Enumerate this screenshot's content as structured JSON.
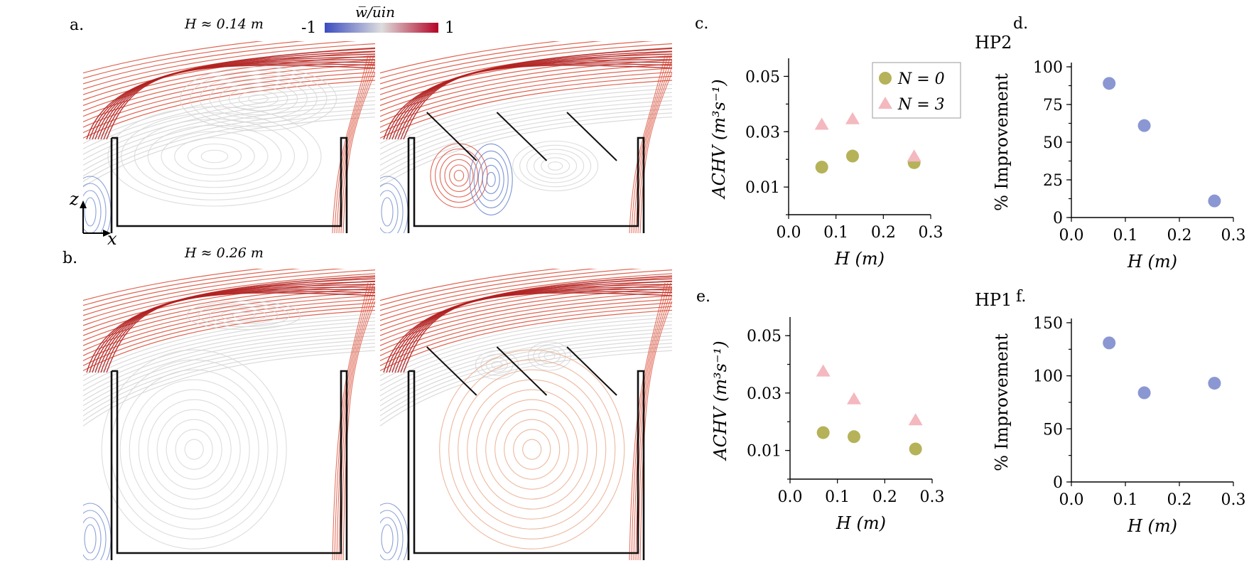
{
  "panels": {
    "a": {
      "label": "a.",
      "H_label": "H ≈ 0.14 m"
    },
    "b": {
      "label": "b.",
      "H_label": "H ≈ 0.26 m"
    }
  },
  "colorbar": {
    "label": "w̅/u̅in",
    "min_label": "-1",
    "max_label": "1",
    "colors": [
      "#3b4cc0",
      "#dddddd",
      "#b40426"
    ]
  },
  "coord_axes": {
    "z": "z",
    "x": "x"
  },
  "colors": {
    "n0": "#b5b25a",
    "n3": "#f4b8bf",
    "improvement": "#8a97d2",
    "neutral": "#d4d4d4",
    "red": "#d9452f",
    "blue": "#5b79c8"
  },
  "chart_data": [
    {
      "id": "c",
      "panel_label": "c.",
      "title": "HP2",
      "type": "scatter",
      "xlabel": "H  (m)",
      "ylabel": "ACHV  (m³s⁻¹)",
      "xlim": [
        0.0,
        0.3
      ],
      "ylim": [
        0.0,
        0.055
      ],
      "xticks": [
        0.0,
        0.1,
        0.2,
        0.3
      ],
      "xtick_labels": [
        "0.0",
        "0.1",
        "0.2",
        "0.3"
      ],
      "yticks": [
        0.01,
        0.03,
        0.05
      ],
      "ytick_labels": [
        "0.01",
        "0.03",
        "0.05"
      ],
      "legend": {
        "placement": "top-right"
      },
      "series": [
        {
          "name": "N = 0",
          "marker": "circle",
          "x": [
            0.07,
            0.135,
            0.265
          ],
          "y": [
            0.0172,
            0.0212,
            0.0188
          ]
        },
        {
          "name": "N = 3",
          "marker": "triangle",
          "x": [
            0.07,
            0.135,
            0.265
          ],
          "y": [
            0.0325,
            0.0345,
            0.021
          ]
        }
      ]
    },
    {
      "id": "d",
      "panel_label": "d.",
      "title": "",
      "type": "scatter",
      "xlabel": "H  (m)",
      "ylabel": "% Improvement",
      "xlim": [
        0.0,
        0.3
      ],
      "ylim": [
        0,
        100
      ],
      "xticks": [
        0.0,
        0.1,
        0.2,
        0.3
      ],
      "xtick_labels": [
        "0.0",
        "0.1",
        "0.2",
        "0.3"
      ],
      "yticks": [
        0,
        25,
        50,
        75,
        100
      ],
      "ytick_labels": [
        "0",
        "25",
        "50",
        "75",
        "100"
      ],
      "series": [
        {
          "name": "",
          "marker": "circle",
          "x": [
            0.07,
            0.135,
            0.265
          ],
          "y": [
            89,
            61,
            11
          ]
        }
      ]
    },
    {
      "id": "e",
      "panel_label": "e.",
      "title": "HP1",
      "type": "scatter",
      "xlabel": "H  (m)",
      "ylabel": "ACHV  (m³s⁻¹)",
      "xlim": [
        0.0,
        0.3
      ],
      "ylim": [
        0.0,
        0.055
      ],
      "xticks": [
        0.0,
        0.1,
        0.2,
        0.3
      ],
      "xtick_labels": [
        "0.0",
        "0.1",
        "0.2",
        "0.3"
      ],
      "yticks": [
        0.01,
        0.03,
        0.05
      ],
      "ytick_labels": [
        "0.01",
        "0.03",
        "0.05"
      ],
      "series": [
        {
          "name": "N = 0",
          "marker": "circle",
          "x": [
            0.07,
            0.135,
            0.265
          ],
          "y": [
            0.0162,
            0.0148,
            0.0105
          ]
        },
        {
          "name": "N = 3",
          "marker": "triangle",
          "x": [
            0.07,
            0.135,
            0.265
          ],
          "y": [
            0.0375,
            0.0278,
            0.0205
          ]
        }
      ]
    },
    {
      "id": "f",
      "panel_label": "f.",
      "title": "",
      "type": "scatter",
      "xlabel": "H  (m)",
      "ylabel": "% Improvement",
      "xlim": [
        0.0,
        0.3
      ],
      "ylim": [
        0,
        150
      ],
      "xticks": [
        0.0,
        0.1,
        0.2,
        0.3
      ],
      "xtick_labels": [
        "0.0",
        "0.1",
        "0.2",
        "0.3"
      ],
      "yticks": [
        0,
        50,
        100,
        150
      ],
      "ytick_labels": [
        "0",
        "50",
        "100",
        "150"
      ],
      "series": [
        {
          "name": "",
          "marker": "circle",
          "x": [
            0.07,
            0.135,
            0.265
          ],
          "y": [
            131,
            84,
            93
          ]
        }
      ]
    }
  ]
}
